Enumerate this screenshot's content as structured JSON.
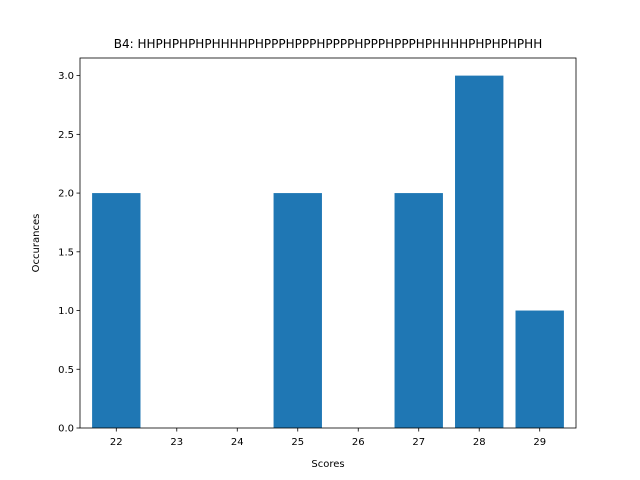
{
  "chart_data": {
    "type": "bar",
    "title": "B4: HHPHPHPHPHHHHPHPPPHPPPHPPPPHPPPHPPPHPHHHHPHPHPHPHH",
    "xlabel": "Scores",
    "ylabel": "Occurances",
    "x": [
      22,
      25,
      27,
      28,
      29
    ],
    "values": [
      2,
      2,
      2,
      3,
      1
    ],
    "xticks": [
      "22",
      "23",
      "24",
      "25",
      "26",
      "27",
      "28",
      "29"
    ],
    "yticks": [
      "0.0",
      "0.5",
      "1.0",
      "1.5",
      "2.0",
      "2.5",
      "3.0"
    ],
    "xlim": [
      21.4,
      29.6
    ],
    "ylim": [
      0,
      3.15
    ],
    "bar_color": "#1f77b4",
    "grid": false
  }
}
